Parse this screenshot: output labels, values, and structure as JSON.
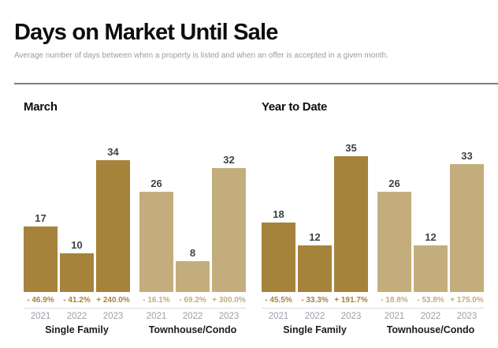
{
  "page": {
    "title": "Days on Market Until Sale",
    "subtitle": "Average number of days between when a property is listed and when an offer is accepted in a given month."
  },
  "colors": {
    "single_family": "#a6833b",
    "townhouse_condo": "#c4ad7c",
    "value_label": "#3b4249",
    "year_label": "#9aa0a8",
    "divider": "#7e7e7e",
    "hairline": "#dcdcdc"
  },
  "chart_data": [
    {
      "type": "bar",
      "title": "March",
      "ylim": [
        0,
        35
      ],
      "legend_position": "none",
      "grid": false,
      "groups": [
        {
          "label": "Single Family",
          "color_key": "single_family",
          "categories": [
            "2021",
            "2022",
            "2023"
          ],
          "values": [
            17,
            10,
            34
          ],
          "pct_change": [
            "- 46.9%",
            "- 41.2%",
            "+ 240.0%"
          ]
        },
        {
          "label": "Townhouse/Condo",
          "color_key": "townhouse_condo",
          "categories": [
            "2021",
            "2022",
            "2023"
          ],
          "values": [
            26,
            8,
            32
          ],
          "pct_change": [
            "- 16.1%",
            "- 69.2%",
            "+ 300.0%"
          ]
        }
      ]
    },
    {
      "type": "bar",
      "title": "Year to Date",
      "ylim": [
        0,
        35
      ],
      "legend_position": "none",
      "grid": false,
      "groups": [
        {
          "label": "Single Family",
          "color_key": "single_family",
          "categories": [
            "2021",
            "2022",
            "2023"
          ],
          "values": [
            18,
            12,
            35
          ],
          "pct_change": [
            "- 45.5%",
            "- 33.3%",
            "+ 191.7%"
          ]
        },
        {
          "label": "Townhouse/Condo",
          "color_key": "townhouse_condo",
          "categories": [
            "2021",
            "2022",
            "2023"
          ],
          "values": [
            26,
            12,
            33
          ],
          "pct_change": [
            "- 18.8%",
            "- 53.8%",
            "+ 175.0%"
          ]
        }
      ]
    }
  ]
}
